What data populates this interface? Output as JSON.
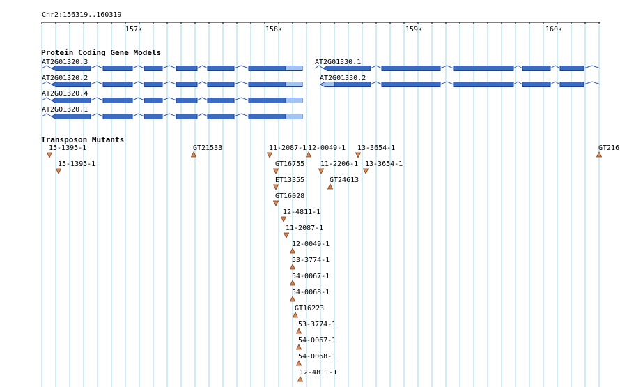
{
  "ruler": {
    "range_label": "Chr2:156319..160319",
    "ticks": [
      "157k",
      "158k",
      "159k",
      "160k"
    ]
  },
  "tracks": {
    "genes": {
      "title": "Protein Coding Gene Models"
    },
    "transposons": {
      "title": "Transposon Mutants"
    }
  },
  "genes": [
    {
      "name": "AT2G01320.3"
    },
    {
      "name": "AT2G01320.2"
    },
    {
      "name": "AT2G01320.4"
    },
    {
      "name": "AT2G01320.1"
    },
    {
      "name": "AT2G01330.1"
    },
    {
      "name": "AT2G01330.2"
    }
  ],
  "mutants": [
    {
      "label": "15-1395-1",
      "strand": "down"
    },
    {
      "label": "15-1395-1",
      "strand": "down"
    },
    {
      "label": "GT21533",
      "strand": "up"
    },
    {
      "label": "11-2087-1",
      "strand": "down"
    },
    {
      "label": "12-0049-1",
      "strand": "up"
    },
    {
      "label": "13-3654-1",
      "strand": "down"
    },
    {
      "label": "GT216",
      "strand": "up"
    },
    {
      "label": "GT16755",
      "strand": "down"
    },
    {
      "label": "11-2206-1",
      "strand": "down"
    },
    {
      "label": "13-3654-1",
      "strand": "down"
    },
    {
      "label": "ET13355",
      "strand": "down"
    },
    {
      "label": "GT24613",
      "strand": "up"
    },
    {
      "label": "GT16028",
      "strand": "down"
    },
    {
      "label": "12-4811-1",
      "strand": "down"
    },
    {
      "label": "11-2087-1",
      "strand": "down"
    },
    {
      "label": "12-0049-1",
      "strand": "up"
    },
    {
      "label": "53-3774-1",
      "strand": "up"
    },
    {
      "label": "54-0067-1",
      "strand": "up"
    },
    {
      "label": "54-0068-1",
      "strand": "up"
    },
    {
      "label": "GT16223",
      "strand": "up"
    },
    {
      "label": "53-3774-1",
      "strand": "up"
    },
    {
      "label": "54-0067-1",
      "strand": "up"
    },
    {
      "label": "54-0068-1",
      "strand": "up"
    },
    {
      "label": "12-4811-1",
      "strand": "up"
    }
  ],
  "colors": {
    "grid": "#a6d8e8",
    "exon": "#3a6cc4",
    "utr": "#a3c4ee",
    "exon_stroke": "#1f3f8f",
    "intron": "#2b55aa",
    "marker": "#d9895a",
    "marker_stroke": "#7a3a14"
  }
}
